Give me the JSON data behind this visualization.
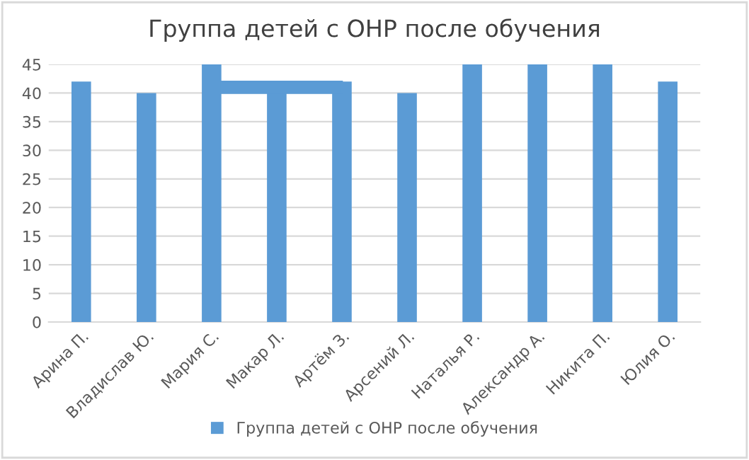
{
  "chart_data": {
    "type": "bar",
    "title": "Группа детей с ОНР после обучения",
    "categories": [
      "Арина П.",
      "Владислав Ю.",
      "Мария С.",
      "Макар Л.",
      "Артём З.",
      "Арсений Л.",
      "Наталья Р.",
      "Александр А.",
      "Никита П.",
      "Юлия О."
    ],
    "series": [
      {
        "name": "Группа детей с ОНР после обучения",
        "color": "#5b9bd5",
        "values": [
          42,
          40,
          45,
          40,
          42,
          40,
          45,
          45,
          45,
          42
        ]
      }
    ],
    "ylim": [
      0,
      45
    ],
    "yticks": [
      0,
      5,
      10,
      15,
      20,
      25,
      30,
      35,
      40,
      45
    ],
    "grid": "y",
    "legend": "bottom"
  }
}
